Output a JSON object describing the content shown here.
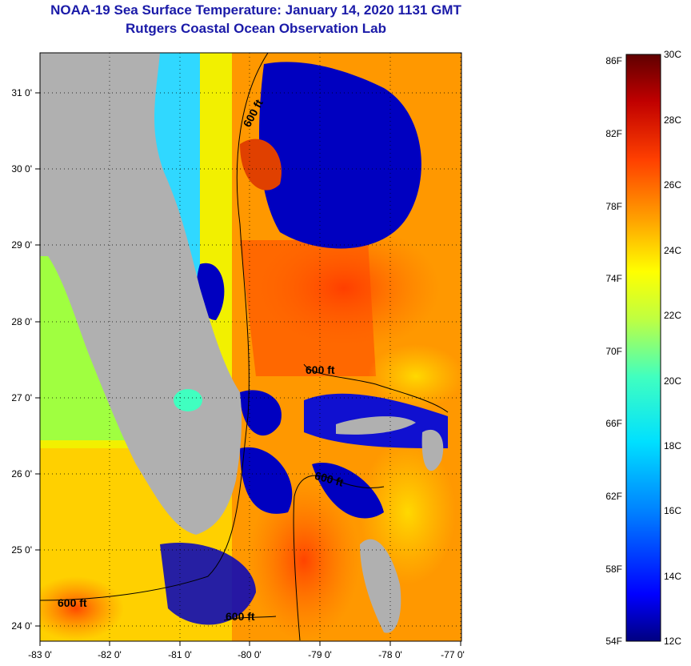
{
  "title": "NOAA-19 Sea Surface Temperature:  January 14, 2020 1131 GMT",
  "subtitle": "Rutgers Coastal Ocean Observation Lab",
  "map": {
    "lon_range": [
      -83,
      -76.9
    ],
    "lat_range": [
      23.8,
      31.5
    ],
    "lon_ticks": [
      "-83 0'",
      "-82 0'",
      "-81 0'",
      "-80 0'",
      "-79 0'",
      "-78 0'",
      "-77 0'"
    ],
    "lat_ticks": [
      "24 0'",
      "25 0'",
      "26 0'",
      "27 0'",
      "28 0'",
      "29 0'",
      "30 0'",
      "31 0'"
    ],
    "grid": "dotted",
    "land_color": "#b0b0b0",
    "contour_labels": [
      "600 ft",
      "600 ft",
      "600 ft",
      "600 ft",
      "600 ft"
    ]
  },
  "colorbar": {
    "fahrenheit_labels": [
      "86F",
      "82F",
      "78F",
      "74F",
      "70F",
      "66F",
      "62F",
      "58F",
      "54F"
    ],
    "celsius_labels": [
      "30C",
      "28C",
      "26C",
      "24C",
      "22C",
      "20C",
      "18C",
      "16C",
      "14C",
      "12C"
    ],
    "range_c": [
      12,
      30
    ],
    "colors": [
      "#000080",
      "#0000ff",
      "#0080ff",
      "#00e0ff",
      "#40ffc0",
      "#c0ff40",
      "#ffff00",
      "#ffa000",
      "#ff4000",
      "#c00000",
      "#600000"
    ]
  }
}
